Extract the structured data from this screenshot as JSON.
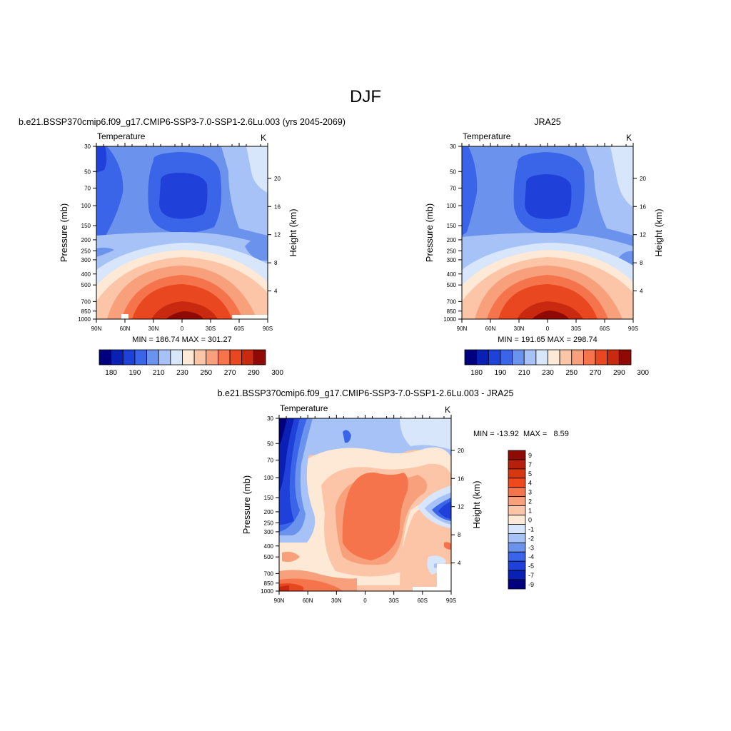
{
  "figure": {
    "title": "DJF"
  },
  "chart_data": [
    {
      "type": "contour",
      "title": "b.e21.BSSP370cmip6.f09_g17.CMIP6-SSP3-7.0-SSP1-2.6Lu.003 (yrs 2045-2069)",
      "left_label": "Temperature",
      "units": "K",
      "ylabel": "Pressure (mb)",
      "ylabel_right": "Height (km)",
      "x_ticks": [
        "90N",
        "60N",
        "30N",
        "0",
        "30S",
        "60S",
        "90S"
      ],
      "y_ticks": [
        "30",
        "50",
        "70",
        "100",
        "150",
        "200",
        "250",
        "300",
        "400",
        "500",
        "700",
        "850",
        "1000"
      ],
      "height_ticks": [
        "4",
        "8",
        "12",
        "16",
        "20"
      ],
      "min_max_text": "MIN = 186.74  MAX = 301.27",
      "min": 186.74,
      "max": 301.27,
      "colorbar_labels": [
        "180",
        "190",
        "210",
        "230",
        "250",
        "270",
        "290",
        "300"
      ]
    },
    {
      "type": "contour",
      "title": "JRA25",
      "left_label": "Temperature",
      "units": "K",
      "ylabel": "Pressure (mb)",
      "ylabel_right": "Height (km)",
      "x_ticks": [
        "90N",
        "60N",
        "30N",
        "0",
        "30S",
        "60S",
        "90S"
      ],
      "y_ticks": [
        "30",
        "50",
        "70",
        "100",
        "150",
        "200",
        "250",
        "300",
        "400",
        "500",
        "700",
        "850",
        "1000"
      ],
      "height_ticks": [
        "4",
        "8",
        "12",
        "16",
        "20"
      ],
      "min_max_text": "MIN = 191.65  MAX = 298.74",
      "min": 191.65,
      "max": 298.74,
      "colorbar_labels": [
        "180",
        "190",
        "210",
        "230",
        "250",
        "270",
        "290",
        "300"
      ]
    },
    {
      "type": "contour",
      "title": "b.e21.BSSP370cmip6.f09_g17.CMIP6-SSP3-7.0-SSP1-2.6Lu.003 - JRA25",
      "left_label": "Temperature",
      "units": "K",
      "ylabel": "Pressure (mb)",
      "ylabel_right": "Height (km)",
      "x_ticks": [
        "90N",
        "60N",
        "30N",
        "0",
        "30S",
        "60S",
        "90S"
      ],
      "y_ticks": [
        "30",
        "50",
        "70",
        "100",
        "150",
        "200",
        "250",
        "300",
        "400",
        "500",
        "700",
        "850",
        "1000"
      ],
      "height_ticks": [
        "4",
        "8",
        "12",
        "16",
        "20"
      ],
      "min_max_text": "MIN = -13.92  MAX =   8.59",
      "min": -13.92,
      "max": 8.59,
      "colorbar_labels": [
        "9",
        "7",
        "5",
        "4",
        "3",
        "2",
        "1",
        "0",
        "-1",
        "-2",
        "-3",
        "-4",
        "-5",
        "-7",
        "-9"
      ]
    }
  ],
  "palette": {
    "abs": [
      "#00007f",
      "#0a1fb4",
      "#1f40d9",
      "#3a65e8",
      "#6b93ee",
      "#a7c2f6",
      "#d7e6fb",
      "#fee8d6",
      "#fcc5a7",
      "#f8a07b",
      "#f5744c",
      "#e8471f",
      "#c8290f",
      "#8f0a05"
    ],
    "diff": [
      "#8f0a05",
      "#b5200c",
      "#d7360f",
      "#ee4a1b",
      "#f5744c",
      "#f8a07b",
      "#fcc5a7",
      "#fee8d6",
      "#d7e6fb",
      "#a7c2f6",
      "#6b93ee",
      "#3a65e8",
      "#1f40d9",
      "#0a1fb4",
      "#00007f"
    ]
  }
}
